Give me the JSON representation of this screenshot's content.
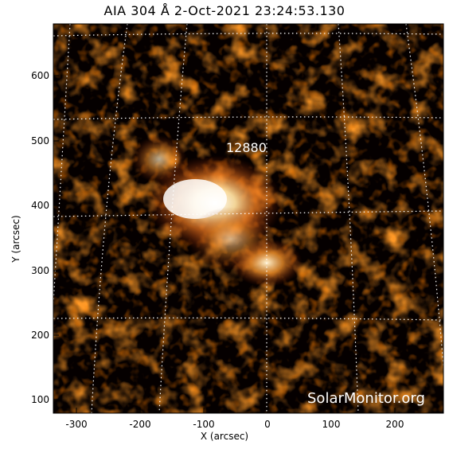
{
  "title": "AIA 304 Å   2-Oct-2021 23:24:53.130",
  "axes": {
    "xlabel": "X (arcsec)",
    "ylabel": "Y (arcsec)",
    "xticks": [
      "-300",
      "-200",
      "-100",
      "0",
      "100",
      "200"
    ],
    "yticks": [
      "600",
      "500",
      "400",
      "300",
      "200",
      "100"
    ]
  },
  "image": {
    "region_label": "12880",
    "watermark": "SolarMonitor.org",
    "colormap": [
      "#000000",
      "#3a0500",
      "#7a1600",
      "#b83a05",
      "#e8731a",
      "#ffc070",
      "#ffffff"
    ]
  }
}
